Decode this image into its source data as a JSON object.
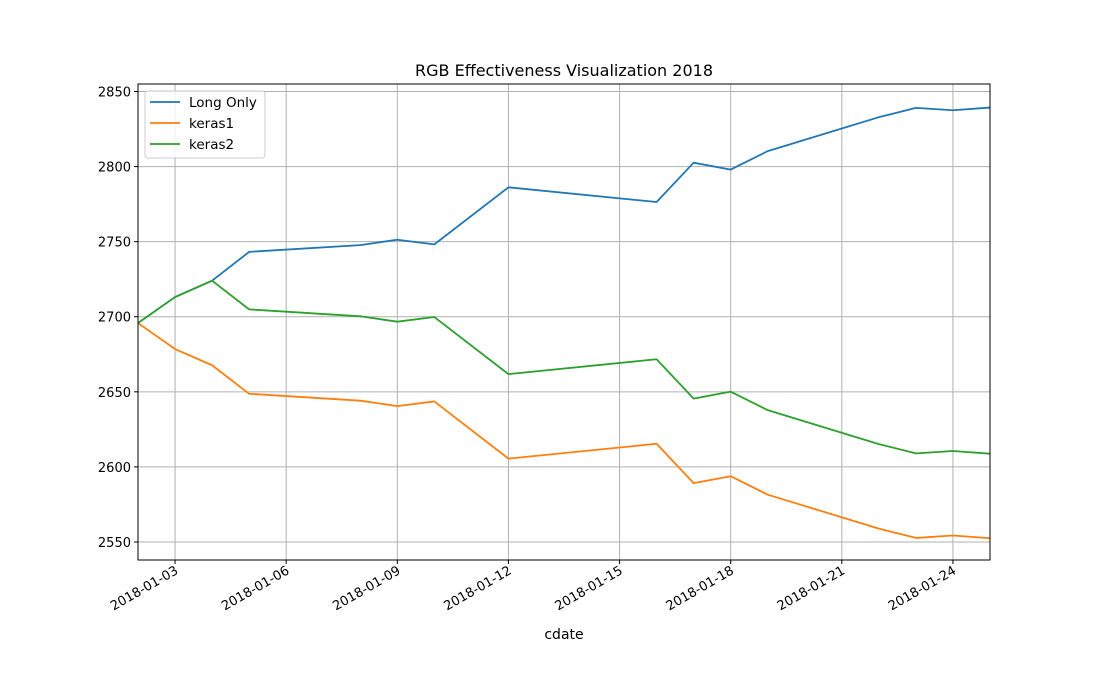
{
  "chart_data": {
    "type": "line",
    "title": "RGB Effectiveness Visualization 2018",
    "xlabel": "cdate",
    "ylabel": "",
    "xlim": [
      "2018-01-02",
      "2018-01-25"
    ],
    "ylim": [
      2538,
      2855
    ],
    "grid": true,
    "legend_position": "top-left",
    "x_ticks": [
      "2018-01-03",
      "2018-01-06",
      "2018-01-09",
      "2018-01-12",
      "2018-01-15",
      "2018-01-18",
      "2018-01-21",
      "2018-01-24"
    ],
    "y_ticks": [
      2550,
      2600,
      2650,
      2700,
      2750,
      2800,
      2850
    ],
    "x": [
      "2018-01-02",
      "2018-01-03",
      "2018-01-04",
      "2018-01-05",
      "2018-01-08",
      "2018-01-09",
      "2018-01-10",
      "2018-01-12",
      "2018-01-16",
      "2018-01-17",
      "2018-01-18",
      "2018-01-19",
      "2018-01-22",
      "2018-01-23",
      "2018-01-24",
      "2018-01-25"
    ],
    "series": [
      {
        "name": "Long Only",
        "color": "#1f77b4",
        "values": [
          2695.8,
          2713.1,
          2724.0,
          2743.2,
          2747.7,
          2751.3,
          2748.2,
          2786.2,
          2776.4,
          2802.6,
          2798.0,
          2810.3,
          2832.9,
          2839.1,
          2837.5,
          2839.3
        ]
      },
      {
        "name": "keras1",
        "color": "#ff7f0e",
        "values": [
          2695.8,
          2678.5,
          2667.7,
          2648.7,
          2644.1,
          2640.5,
          2643.6,
          2605.5,
          2615.4,
          2589.2,
          2593.8,
          2581.5,
          2558.9,
          2552.7,
          2554.3,
          2552.5
        ]
      },
      {
        "name": "keras2",
        "color": "#2ca02c",
        "values": [
          2695.8,
          2713.1,
          2724.0,
          2704.9,
          2700.3,
          2696.7,
          2699.8,
          2661.8,
          2671.7,
          2645.5,
          2650.1,
          2637.8,
          2615.2,
          2609.0,
          2610.6,
          2608.8
        ]
      }
    ]
  }
}
